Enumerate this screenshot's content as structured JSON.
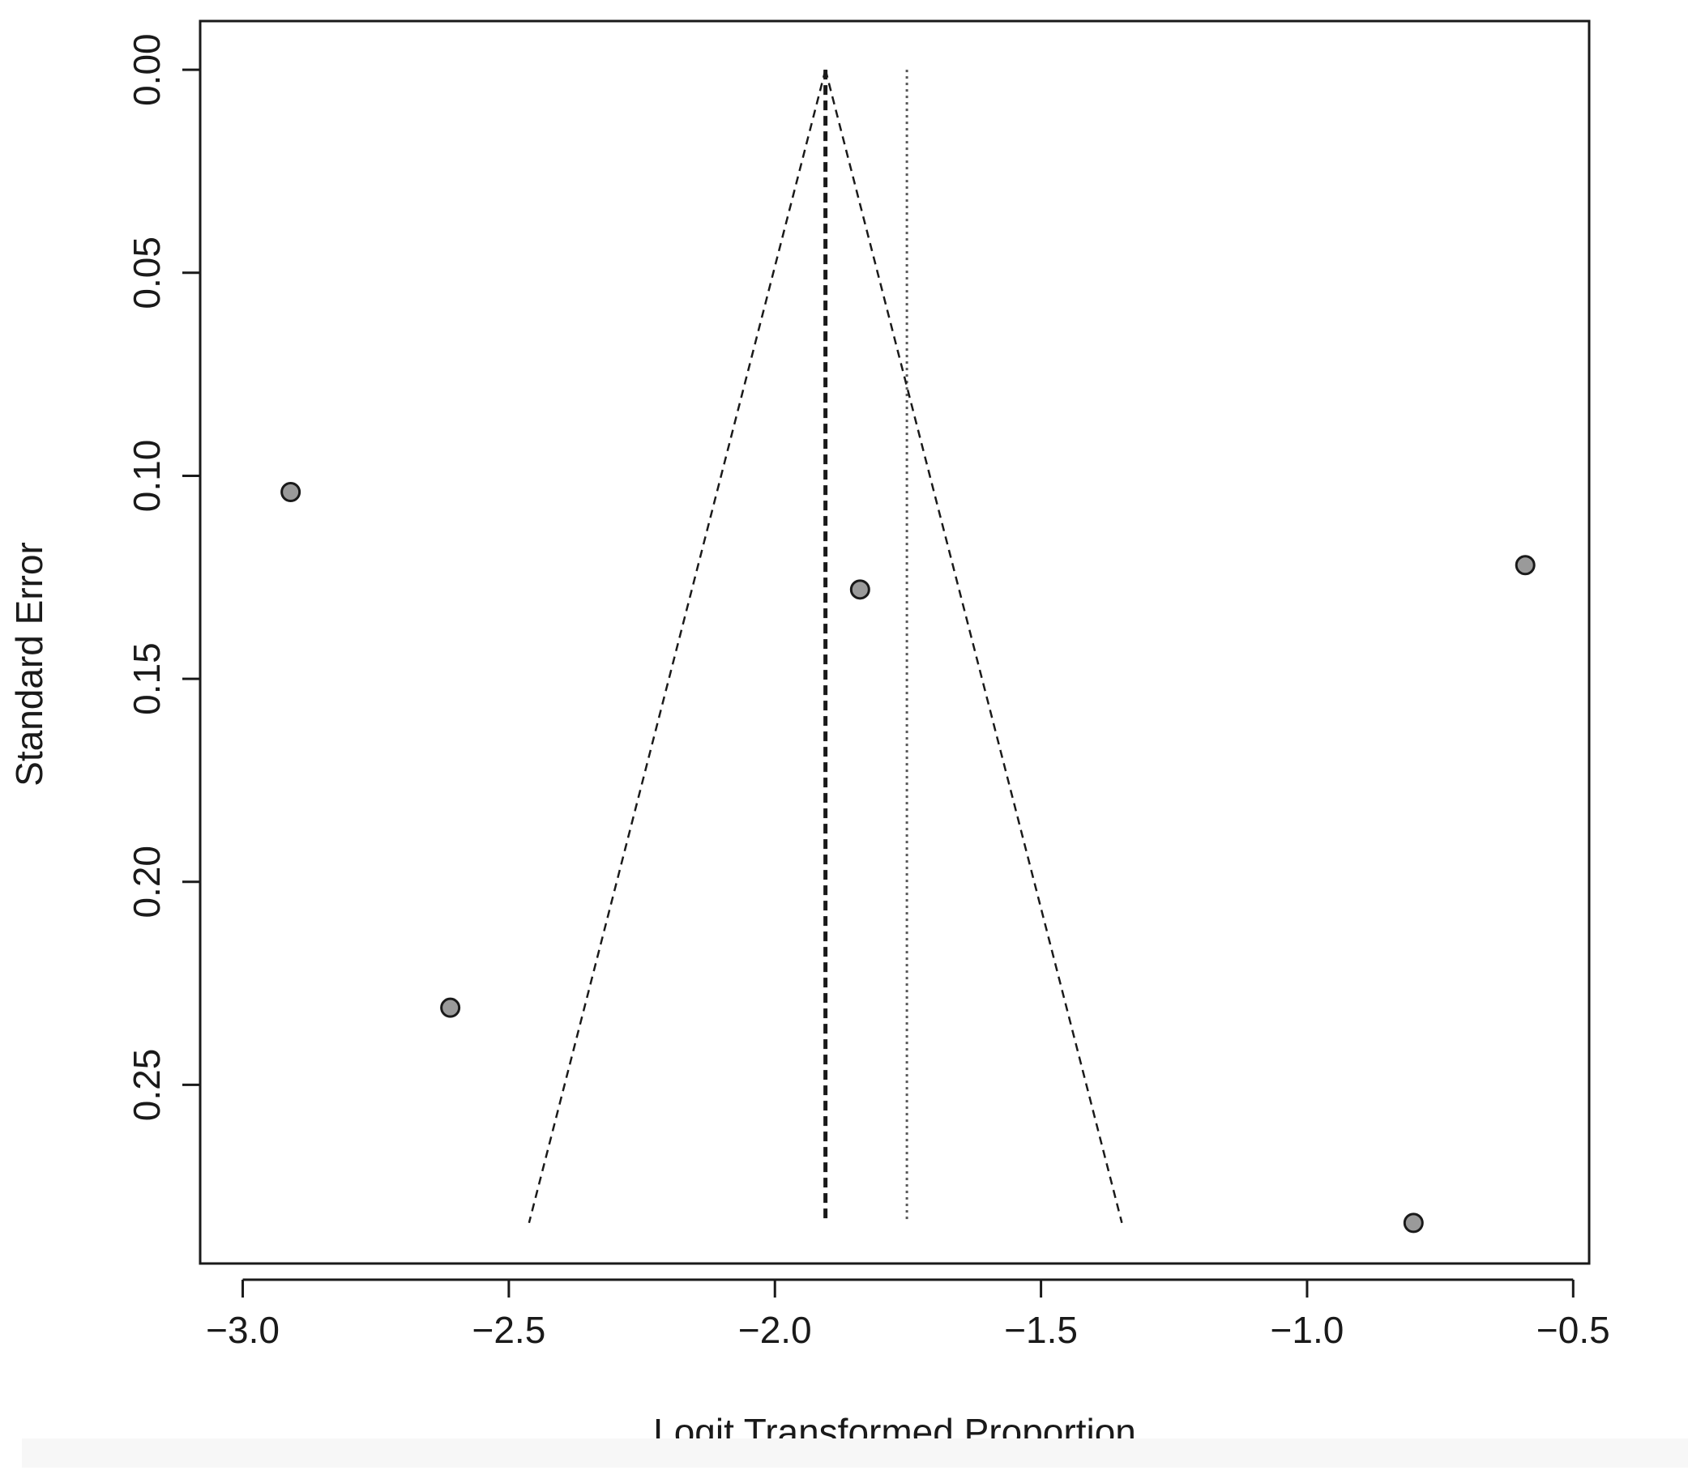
{
  "chart_data": {
    "type": "scatter",
    "title": "",
    "xlabel": "Logit Transformed Proportion",
    "ylabel": "Standard Error",
    "xlim": [
      -3.08,
      -0.47
    ],
    "ylim": [
      0.294,
      -0.012
    ],
    "y_axis_reversed": true,
    "x_ticks": [
      -3.0,
      -2.5,
      -2.0,
      -1.5,
      -1.0,
      -0.5
    ],
    "x_tick_labels": [
      "−3.0",
      "−2.5",
      "−2.0",
      "−1.5",
      "−1.0",
      "−0.5"
    ],
    "y_ticks": [
      0.0,
      0.05,
      0.1,
      0.15,
      0.2,
      0.25
    ],
    "y_tick_labels": [
      "0.00",
      "0.05",
      "0.10",
      "0.15",
      "0.20",
      "0.25"
    ],
    "grid": false,
    "points": [
      {
        "x": -2.91,
        "y": 0.104
      },
      {
        "x": -2.61,
        "y": 0.231
      },
      {
        "x": -1.84,
        "y": 0.128
      },
      {
        "x": -0.59,
        "y": 0.122
      },
      {
        "x": -0.8,
        "y": 0.284
      }
    ],
    "funnel": {
      "center": -1.905,
      "apex_y": 0.0,
      "base_y": 0.284,
      "left_base_x": -2.462,
      "right_base_x": -1.348
    },
    "reference_lines": [
      {
        "x": -1.905,
        "style": "dashed"
      },
      {
        "x": -1.752,
        "style": "dotted"
      }
    ],
    "colors": {
      "point_fill": "#9a9a9a",
      "point_stroke": "#1a1a1a",
      "line": "#1a1a1a",
      "axis": "#1a1a1a"
    }
  }
}
